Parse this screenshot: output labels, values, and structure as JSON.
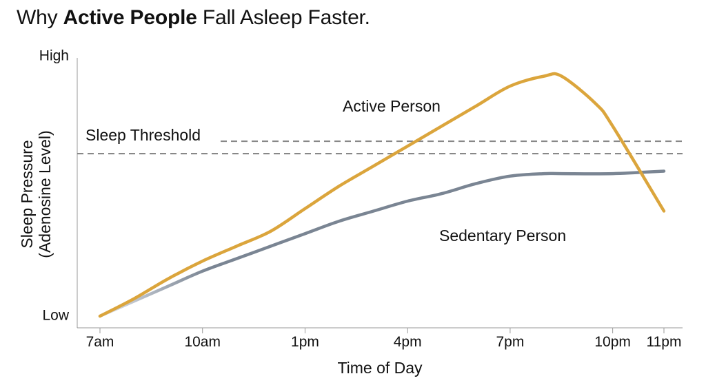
{
  "title": {
    "prefix": "Why ",
    "bold": "Active People",
    "suffix": " Fall Asleep Faster."
  },
  "chart_data": {
    "type": "line",
    "xlabel": "Time of Day",
    "ylabel_line1": "Sleep Pressure",
    "ylabel_line2": "(Adenosine Level)",
    "x_ticks": [
      "7am",
      "10am",
      "1pm",
      "4pm",
      "7pm",
      "10pm",
      "11pm"
    ],
    "x_tick_hours": [
      7,
      10,
      13,
      16,
      19,
      22,
      23.5
    ],
    "y_ticks": [
      "High",
      "Low"
    ],
    "xlim": [
      6.5,
      24
    ],
    "ylim": [
      0,
      100
    ],
    "y_tick_values": [
      100,
      0
    ],
    "threshold": {
      "label": "Sleep Threshold",
      "value": 65
    },
    "series": [
      {
        "name": "Active Person",
        "color": "#dba53c",
        "points": [
          [
            7,
            0
          ],
          [
            8,
            7
          ],
          [
            9,
            15
          ],
          [
            10,
            22
          ],
          [
            11,
            28
          ],
          [
            12,
            34
          ],
          [
            13,
            43
          ],
          [
            14,
            52
          ],
          [
            15,
            60
          ],
          [
            16,
            68
          ],
          [
            17,
            76
          ],
          [
            18,
            84
          ],
          [
            19,
            92
          ],
          [
            20,
            96
          ],
          [
            20.5,
            96
          ],
          [
            21.5,
            85
          ],
          [
            22,
            76
          ],
          [
            23.5,
            42
          ]
        ]
      },
      {
        "name": "Sedentary Person",
        "color": "#7a8593",
        "points": [
          [
            7,
            0
          ],
          [
            8,
            6
          ],
          [
            9,
            12
          ],
          [
            10,
            18
          ],
          [
            11,
            23
          ],
          [
            12,
            28
          ],
          [
            13,
            33
          ],
          [
            14,
            38
          ],
          [
            15,
            42
          ],
          [
            16,
            46
          ],
          [
            17,
            49
          ],
          [
            18,
            53
          ],
          [
            19,
            56
          ],
          [
            20,
            57
          ],
          [
            20.5,
            57
          ],
          [
            22,
            57
          ],
          [
            23.5,
            58
          ]
        ]
      }
    ],
    "grid": false,
    "legend": "none"
  }
}
